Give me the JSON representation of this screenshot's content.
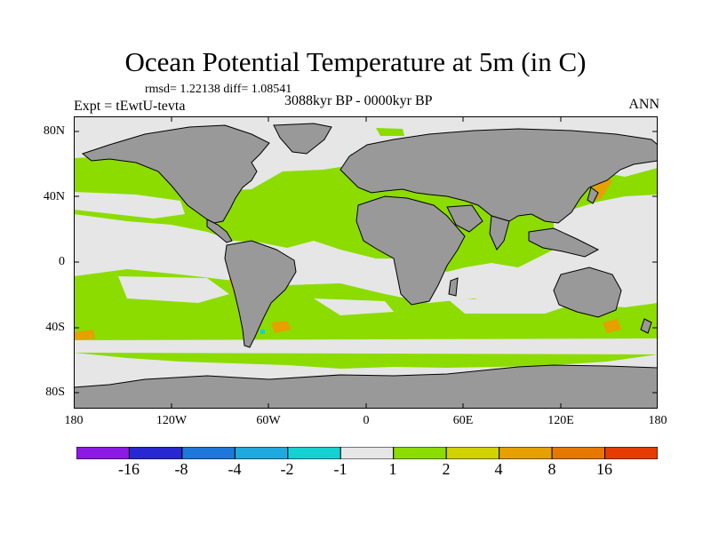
{
  "title": "Ocean Potential Temperature at 5m (in C)",
  "stats": "rmsd= 1.22138 diff= 1.08541",
  "experiment": "Expt = tEwtU-tevta",
  "period": "3088kyr BP - 0000kyr BP",
  "season": "ANN",
  "y_axis_labels": [
    "80N",
    "40N",
    "0",
    "40S",
    "80S"
  ],
  "x_axis_labels": [
    "180",
    "120W",
    "60W",
    "0",
    "60E",
    "120E",
    "180"
  ],
  "colorbar": {
    "colors": [
      "#8c1ae6",
      "#2828d2",
      "#1e78dc",
      "#1eaadc",
      "#14d2d2",
      "#e6e6e6",
      "#8cdc00",
      "#d2d200",
      "#e6a000",
      "#e67800",
      "#e63c00"
    ],
    "labels": [
      "-16",
      "-8",
      "-4",
      "-2",
      "-1",
      "1",
      "2",
      "4",
      "8",
      "16"
    ]
  },
  "map_colors": {
    "land": "#999999",
    "ocean_near_zero": "#e6e6e6",
    "ocean_warm": "#8cdc00",
    "ocean_hot": "#e6a000",
    "ocean_cold": "#14d2d2",
    "coast": "#000000"
  }
}
